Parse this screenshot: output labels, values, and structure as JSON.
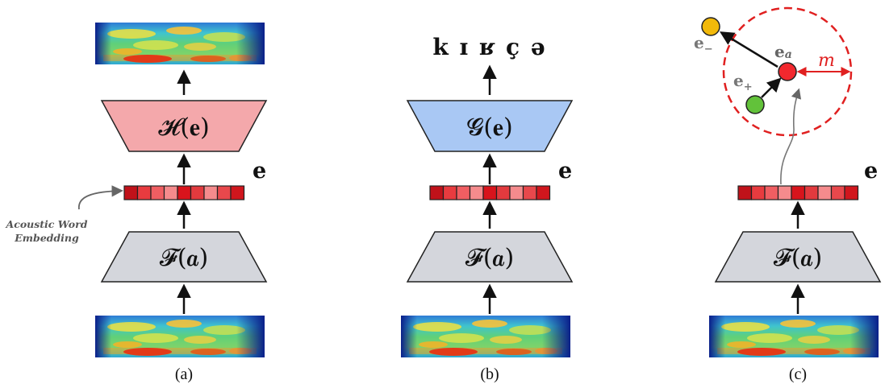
{
  "panels": [
    {
      "caption": "(a)",
      "encoder_label": "𝓕(𝒂)",
      "head_label": "𝓗(𝐞)",
      "head_color": "#f4a8ab",
      "embedding_label": "e",
      "annotation": [
        "Acoustic Word",
        "Embedding"
      ]
    },
    {
      "caption": "(b)",
      "encoder_label": "𝓕(𝒂)",
      "head_label": "𝓖(𝐞)",
      "head_color": "#a9c8f4",
      "embedding_label": "e",
      "output_text": "k ɪ ʁ ç ə"
    },
    {
      "caption": "(c)",
      "encoder_label": "𝓕(𝒂)",
      "embedding_label": "e",
      "anchor_label": "e",
      "anchor_sub": "a",
      "positive_label": "e",
      "positive_sub": "+",
      "negative_label": "e",
      "negative_sub": "−",
      "margin_label": "m"
    }
  ],
  "colors": {
    "encoder": "#d4d6dc",
    "embedding_cells": [
      "#c0121a",
      "#e83b3f",
      "#f05e62",
      "#f58b8d",
      "#d8141c",
      "#e23a3e",
      "#f58b8d",
      "#e8484c",
      "#d0161d"
    ],
    "anchor": "#f2282e",
    "positive": "#62c23a",
    "negative": "#f2b90a",
    "margin": "#e02020"
  }
}
